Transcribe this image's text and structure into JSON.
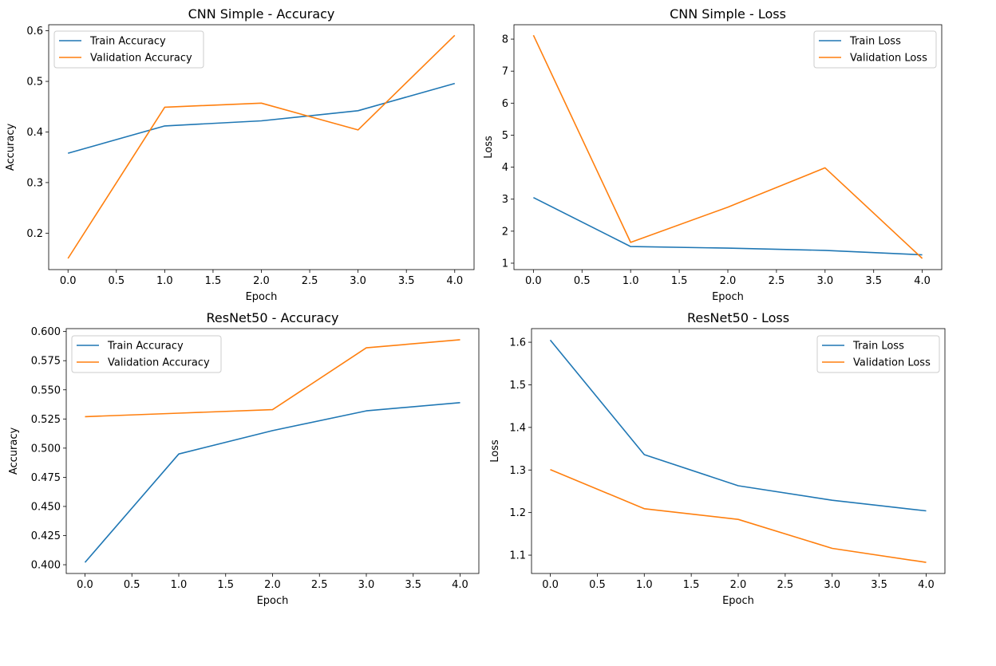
{
  "colors": {
    "train": "#1f77b4",
    "validation": "#ff7f0e"
  },
  "chart_data": [
    {
      "type": "line",
      "title": "CNN Simple - Accuracy",
      "xlabel": "Epoch",
      "ylabel": "Accuracy",
      "x": [
        0,
        1,
        2,
        3,
        4
      ],
      "xlim": [
        -0.2,
        4.2
      ],
      "ylim": [
        0.128,
        0.612
      ],
      "xticks": [
        0.0,
        0.5,
        1.0,
        1.5,
        2.0,
        2.5,
        3.0,
        3.5,
        4.0
      ],
      "xtick_labels": [
        "0.0",
        "0.5",
        "1.0",
        "1.5",
        "2.0",
        "2.5",
        "3.0",
        "3.5",
        "4.0"
      ],
      "yticks": [
        0.2,
        0.3,
        0.4,
        0.5,
        0.6
      ],
      "ytick_labels": [
        "0.2",
        "0.3",
        "0.4",
        "0.5",
        "0.6"
      ],
      "legend": "top-left",
      "grid": false,
      "series": [
        {
          "name": "Train Accuracy",
          "color": "#1f77b4",
          "values": [
            0.358,
            0.412,
            0.422,
            0.442,
            0.496
          ]
        },
        {
          "name": "Validation Accuracy",
          "color": "#ff7f0e",
          "values": [
            0.15,
            0.449,
            0.457,
            0.404,
            0.591
          ]
        }
      ]
    },
    {
      "type": "line",
      "title": "CNN Simple - Loss",
      "xlabel": "Epoch",
      "ylabel": "Loss",
      "x": [
        0,
        1,
        2,
        3,
        4
      ],
      "xlim": [
        -0.2,
        4.2
      ],
      "ylim": [
        0.8,
        8.45
      ],
      "xticks": [
        0.0,
        0.5,
        1.0,
        1.5,
        2.0,
        2.5,
        3.0,
        3.5,
        4.0
      ],
      "xtick_labels": [
        "0.0",
        "0.5",
        "1.0",
        "1.5",
        "2.0",
        "2.5",
        "3.0",
        "3.5",
        "4.0"
      ],
      "yticks": [
        1,
        2,
        3,
        4,
        5,
        6,
        7,
        8
      ],
      "ytick_labels": [
        "1",
        "2",
        "3",
        "4",
        "5",
        "6",
        "7",
        "8"
      ],
      "legend": "top-right",
      "grid": false,
      "series": [
        {
          "name": "Train Loss",
          "color": "#1f77b4",
          "values": [
            3.05,
            1.52,
            1.47,
            1.4,
            1.26
          ]
        },
        {
          "name": "Validation Loss",
          "color": "#ff7f0e",
          "values": [
            8.12,
            1.65,
            2.75,
            3.98,
            1.15
          ]
        }
      ]
    },
    {
      "type": "line",
      "title": "ResNet50 - Accuracy",
      "xlabel": "Epoch",
      "ylabel": "Accuracy",
      "x": [
        0,
        1,
        2,
        3,
        4
      ],
      "xlim": [
        -0.2,
        4.2
      ],
      "ylim": [
        0.3925,
        0.6025
      ],
      "xticks": [
        0.0,
        0.5,
        1.0,
        1.5,
        2.0,
        2.5,
        3.0,
        3.5,
        4.0
      ],
      "xtick_labels": [
        "0.0",
        "0.5",
        "1.0",
        "1.5",
        "2.0",
        "2.5",
        "3.0",
        "3.5",
        "4.0"
      ],
      "yticks": [
        0.4,
        0.425,
        0.45,
        0.475,
        0.5,
        0.525,
        0.55,
        0.575,
        0.6
      ],
      "ytick_labels": [
        "0.400",
        "0.425",
        "0.450",
        "0.475",
        "0.500",
        "0.525",
        "0.550",
        "0.575",
        "0.600"
      ],
      "legend": "top-left",
      "grid": false,
      "series": [
        {
          "name": "Train Accuracy",
          "color": "#1f77b4",
          "values": [
            0.402,
            0.495,
            0.515,
            0.532,
            0.539
          ]
        },
        {
          "name": "Validation Accuracy",
          "color": "#ff7f0e",
          "values": [
            0.527,
            0.53,
            0.533,
            0.586,
            0.593
          ]
        }
      ]
    },
    {
      "type": "line",
      "title": "ResNet50 - Loss",
      "xlabel": "Epoch",
      "ylabel": "Loss",
      "x": [
        0,
        1,
        2,
        3,
        4
      ],
      "xlim": [
        -0.2,
        4.2
      ],
      "ylim": [
        1.057,
        1.632
      ],
      "xticks": [
        0.0,
        0.5,
        1.0,
        1.5,
        2.0,
        2.5,
        3.0,
        3.5,
        4.0
      ],
      "xtick_labels": [
        "0.0",
        "0.5",
        "1.0",
        "1.5",
        "2.0",
        "2.5",
        "3.0",
        "3.5",
        "4.0"
      ],
      "yticks": [
        1.1,
        1.2,
        1.3,
        1.4,
        1.5,
        1.6
      ],
      "ytick_labels": [
        "1.1",
        "1.2",
        "1.3",
        "1.4",
        "1.5",
        "1.6"
      ],
      "legend": "top-right",
      "grid": false,
      "series": [
        {
          "name": "Train Loss",
          "color": "#1f77b4",
          "values": [
            1.605,
            1.336,
            1.263,
            1.229,
            1.204
          ]
        },
        {
          "name": "Validation Loss",
          "color": "#ff7f0e",
          "values": [
            1.301,
            1.209,
            1.184,
            1.116,
            1.083
          ]
        }
      ]
    }
  ]
}
